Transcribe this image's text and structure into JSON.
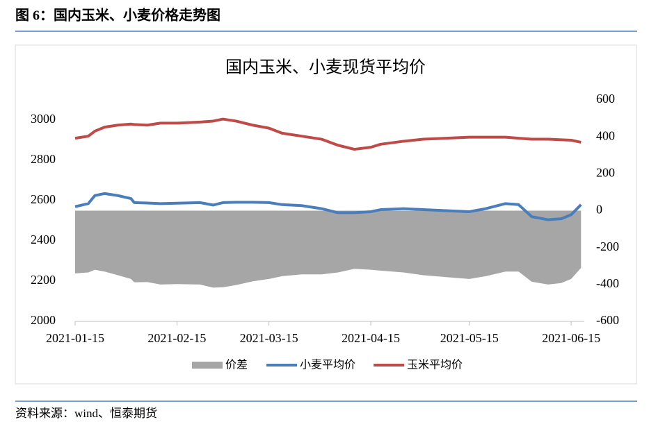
{
  "header": {
    "title": "图 6：国内玉米、小麦价格走势图"
  },
  "footer": {
    "source": "资料来源：wind、恒泰期货"
  },
  "chart_data": {
    "type": "line",
    "title": "国内玉米、小麦现货平均价",
    "x": [
      "2021-01-15",
      "2021-01-19",
      "2021-01-21",
      "2021-01-24",
      "2021-01-28",
      "2021-02-01",
      "2021-02-02",
      "2021-02-06",
      "2021-02-10",
      "2021-02-15",
      "2021-02-22",
      "2021-02-26",
      "2021-03-01",
      "2021-03-05",
      "2021-03-10",
      "2021-03-15",
      "2021-03-19",
      "2021-03-25",
      "2021-03-31",
      "2021-04-05",
      "2021-04-10",
      "2021-04-15",
      "2021-04-18",
      "2021-04-25",
      "2021-05-01",
      "2021-05-08",
      "2021-05-15",
      "2021-05-20",
      "2021-05-26",
      "2021-05-30",
      "2021-06-03",
      "2021-06-08",
      "2021-06-12",
      "2021-06-15",
      "2021-06-18"
    ],
    "series": [
      {
        "name": "价差",
        "color": "#a6a6a6",
        "axis": "y2",
        "kind": "area",
        "values": [
          -340,
          -335,
          -320,
          -330,
          -350,
          -370,
          -388,
          -387,
          -400,
          -398,
          -400,
          -417,
          -415,
          -403,
          -383,
          -370,
          -355,
          -345,
          -345,
          -335,
          -315,
          -320,
          -325,
          -335,
          -350,
          -360,
          -370,
          -355,
          -330,
          -330,
          -385,
          -400,
          -392,
          -370,
          -310
        ]
      },
      {
        "name": "小麦平均价",
        "color": "#4a7ebb",
        "kind": "line",
        "values": [
          2570,
          2585,
          2625,
          2635,
          2625,
          2610,
          2590,
          2588,
          2585,
          2587,
          2590,
          2578,
          2590,
          2592,
          2592,
          2590,
          2580,
          2575,
          2560,
          2540,
          2540,
          2545,
          2555,
          2560,
          2555,
          2550,
          2545,
          2560,
          2585,
          2580,
          2520,
          2505,
          2510,
          2530,
          2580
        ]
      },
      {
        "name": "玉米平均价",
        "color": "#be4b48",
        "kind": "line",
        "values": [
          2910,
          2920,
          2945,
          2965,
          2975,
          2980,
          2978,
          2975,
          2985,
          2985,
          2990,
          2995,
          3005,
          2995,
          2975,
          2960,
          2935,
          2920,
          2905,
          2875,
          2855,
          2865,
          2880,
          2895,
          2905,
          2910,
          2915,
          2915,
          2915,
          2910,
          2905,
          2905,
          2902,
          2900,
          2890
        ]
      }
    ],
    "xlim": [
      "2021-01-15",
      "2021-06-19"
    ],
    "xticks": [
      "2021-01-15",
      "2021-02-15",
      "2021-03-15",
      "2021-04-15",
      "2021-05-15",
      "2021-06-15"
    ],
    "ylim": [
      2000,
      3100
    ],
    "yticks": [
      2000,
      2200,
      2400,
      2600,
      2800,
      3000
    ],
    "y2lim": [
      -600,
      600
    ],
    "y2ticks": [
      -600,
      -400,
      -200,
      0,
      200,
      400,
      600
    ],
    "legend": "bottom"
  }
}
